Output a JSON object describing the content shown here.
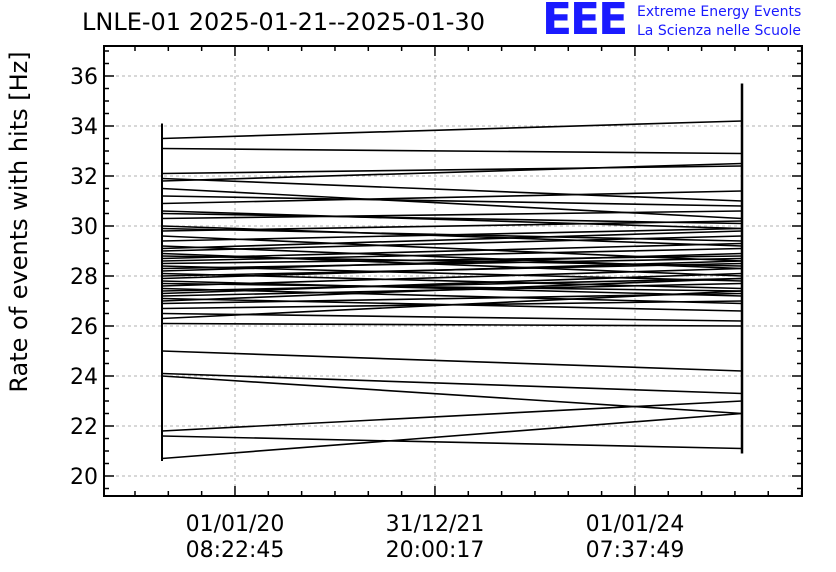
{
  "chart_data": {
    "type": "line",
    "title": "LNLE-01 2025-01-21--2025-01-30",
    "xlabel": "",
    "ylabel": "Rate of events with hits [Hz]",
    "ylim": [
      19.2,
      37.2
    ],
    "y_ticks": [
      20,
      22,
      24,
      26,
      28,
      30,
      32,
      34,
      36
    ],
    "x_ticks": [
      {
        "date": "01/01/20",
        "time": "08:22:45"
      },
      {
        "date": "31/12/21",
        "time": "20:00:17"
      },
      {
        "date": "01/01/24",
        "time": "07:37:49"
      }
    ],
    "grid": true,
    "left_edge": {
      "min": 20.6,
      "max": 34.1
    },
    "right_edge": {
      "min": 20.9,
      "max": 35.7
    },
    "segments": [
      [
        33.5,
        34.2
      ],
      [
        33.1,
        32.9
      ],
      [
        32.1,
        32.4
      ],
      [
        31.9,
        31.0
      ],
      [
        31.8,
        32.5
      ],
      [
        31.5,
        30.3
      ],
      [
        31.2,
        30.8
      ],
      [
        30.9,
        31.4
      ],
      [
        30.6,
        29.9
      ],
      [
        30.3,
        30.6
      ],
      [
        30.0,
        29.2
      ],
      [
        29.8,
        30.2
      ],
      [
        29.6,
        28.6
      ],
      [
        29.4,
        29.9
      ],
      [
        29.2,
        28.3
      ],
      [
        29.0,
        29.6
      ],
      [
        28.9,
        28.0
      ],
      [
        28.7,
        29.3
      ],
      [
        28.5,
        28.8
      ],
      [
        28.4,
        27.8
      ],
      [
        28.2,
        28.9
      ],
      [
        28.1,
        27.5
      ],
      [
        27.9,
        28.6
      ],
      [
        27.8,
        27.2
      ],
      [
        27.6,
        28.3
      ],
      [
        27.5,
        26.9
      ],
      [
        27.3,
        28.1
      ],
      [
        27.2,
        27.7
      ],
      [
        27.1,
        26.6
      ],
      [
        27.0,
        27.9
      ],
      [
        26.9,
        27.3
      ],
      [
        26.7,
        27.0
      ],
      [
        26.5,
        26.2
      ],
      [
        26.3,
        27.4
      ],
      [
        26.1,
        26.0
      ],
      [
        25.0,
        24.2
      ],
      [
        24.1,
        23.3
      ],
      [
        24.0,
        22.5
      ],
      [
        21.8,
        23.0
      ],
      [
        21.6,
        21.1
      ],
      [
        20.7,
        22.5
      ],
      [
        28.6,
        29.1
      ],
      [
        28.8,
        28.4
      ],
      [
        29.1,
        29.8
      ],
      [
        27.4,
        27.9
      ],
      [
        28.3,
        28.7
      ],
      [
        30.5,
        30.1
      ],
      [
        29.9,
        29.4
      ],
      [
        28.0,
        28.5
      ],
      [
        27.7,
        27.4
      ]
    ]
  },
  "header": {
    "title": "LNLE-01 2025-01-21--2025-01-30",
    "logo_mark": "EEE",
    "logo_line1": "Extreme Energy Events",
    "logo_line2": "La Scienza nelle Scuole"
  }
}
